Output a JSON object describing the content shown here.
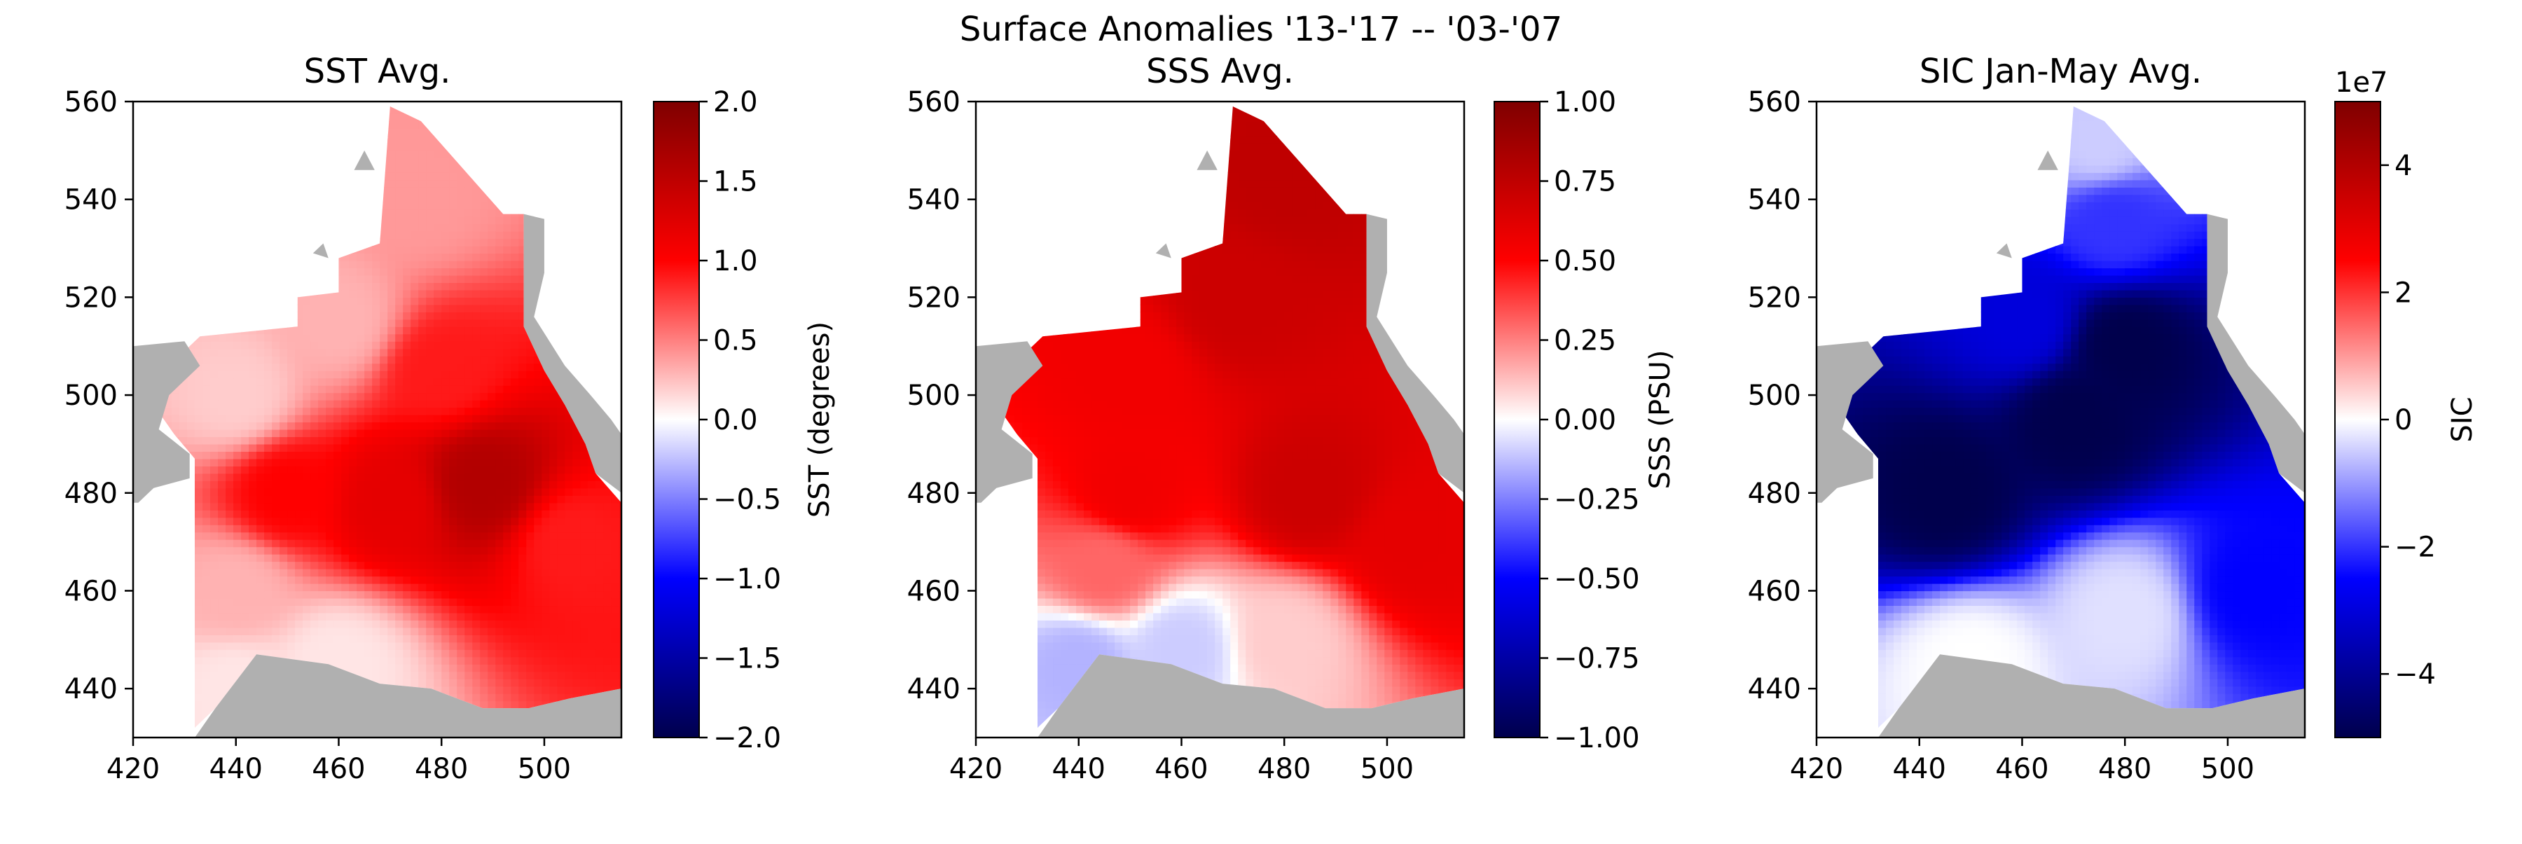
{
  "figure": {
    "suptitle": "Surface Anomalies '13-'17 -- '03-'07"
  },
  "colors": {
    "land": "#b0b0b0",
    "cmap_seismic": [
      "#00004c",
      "#0000ff",
      "#ffffff",
      "#ff0000",
      "#7f0000"
    ]
  },
  "chart_data": [
    {
      "type": "heatmap",
      "title": "SST Avg.",
      "colorbar_label": "SST (degrees)",
      "colormap": "seismic",
      "xlim": [
        420,
        515
      ],
      "ylim": [
        430,
        560
      ],
      "xticks": [
        420,
        440,
        460,
        480,
        500
      ],
      "yticks": [
        440,
        460,
        480,
        500,
        520,
        540,
        560
      ],
      "clim": [
        -2.0,
        2.0
      ],
      "cbar_ticks": [
        "−2.0",
        "−1.5",
        "−1.0",
        "−0.5",
        "0.0",
        "0.5",
        "1.0",
        "1.5",
        "2.0"
      ],
      "cbar_tick_values": [
        -2.0,
        -1.5,
        -1.0,
        -0.5,
        0.0,
        0.5,
        1.0,
        1.5,
        2.0
      ],
      "cbar_offset": "",
      "field_samples": [
        {
          "x": 440,
          "y": 440,
          "value": 0.1
        },
        {
          "x": 460,
          "y": 445,
          "value": 0.1
        },
        {
          "x": 440,
          "y": 460,
          "value": 0.3
        },
        {
          "x": 450,
          "y": 480,
          "value": 1.0
        },
        {
          "x": 470,
          "y": 478,
          "value": 1.2
        },
        {
          "x": 488,
          "y": 482,
          "value": 1.6
        },
        {
          "x": 505,
          "y": 470,
          "value": 0.9
        },
        {
          "x": 440,
          "y": 500,
          "value": 0.2
        },
        {
          "x": 460,
          "y": 515,
          "value": 0.3
        },
        {
          "x": 480,
          "y": 505,
          "value": 0.9
        },
        {
          "x": 475,
          "y": 540,
          "value": 0.4
        }
      ]
    },
    {
      "type": "heatmap",
      "title": "SSS Avg.",
      "colorbar_label": "SSS (PSU)",
      "colormap": "seismic",
      "xlim": [
        420,
        515
      ],
      "ylim": [
        430,
        560
      ],
      "xticks": [
        420,
        440,
        460,
        480,
        500
      ],
      "yticks": [
        440,
        460,
        480,
        500,
        520,
        540,
        560
      ],
      "clim": [
        -1.0,
        1.0
      ],
      "cbar_ticks": [
        "−1.00",
        "−0.75",
        "−0.50",
        "−0.25",
        "0.00",
        "0.25",
        "0.50",
        "0.75",
        "1.00"
      ],
      "cbar_tick_values": [
        -1.0,
        -0.75,
        -0.5,
        -0.25,
        0.0,
        0.25,
        0.5,
        0.75,
        1.0
      ],
      "cbar_offset": "",
      "field_samples": [
        {
          "x": 440,
          "y": 445,
          "value": -0.15
        },
        {
          "x": 460,
          "y": 448,
          "value": -0.1
        },
        {
          "x": 480,
          "y": 450,
          "value": 0.1
        },
        {
          "x": 445,
          "y": 465,
          "value": 0.3
        },
        {
          "x": 450,
          "y": 480,
          "value": 0.55
        },
        {
          "x": 485,
          "y": 480,
          "value": 0.7
        },
        {
          "x": 505,
          "y": 470,
          "value": 0.6
        },
        {
          "x": 450,
          "y": 505,
          "value": 0.55
        },
        {
          "x": 470,
          "y": 520,
          "value": 0.7
        },
        {
          "x": 480,
          "y": 545,
          "value": 0.75
        }
      ]
    },
    {
      "type": "heatmap",
      "title": "SIC Jan-May Avg.",
      "colorbar_label": "SIC",
      "colormap": "seismic",
      "xlim": [
        420,
        515
      ],
      "ylim": [
        430,
        560
      ],
      "xticks": [
        420,
        440,
        460,
        480,
        500
      ],
      "yticks": [
        440,
        460,
        480,
        500,
        520,
        540,
        560
      ],
      "clim": [
        -5.0,
        5.0
      ],
      "cbar_ticks": [
        "−4",
        "−2",
        "0",
        "2",
        "4"
      ],
      "cbar_tick_values": [
        -4,
        -2,
        0,
        2,
        4
      ],
      "cbar_offset": "1e7",
      "field_samples": [
        {
          "x": 450,
          "y": 445,
          "value": 0.0
        },
        {
          "x": 480,
          "y": 455,
          "value": -0.3
        },
        {
          "x": 505,
          "y": 460,
          "value": -2.5
        },
        {
          "x": 445,
          "y": 480,
          "value": -5.0
        },
        {
          "x": 470,
          "y": 495,
          "value": -5.0
        },
        {
          "x": 480,
          "y": 510,
          "value": -5.0
        },
        {
          "x": 460,
          "y": 515,
          "value": -3.0
        },
        {
          "x": 478,
          "y": 535,
          "value": -2.0
        },
        {
          "x": 475,
          "y": 552,
          "value": -0.5
        }
      ]
    }
  ]
}
